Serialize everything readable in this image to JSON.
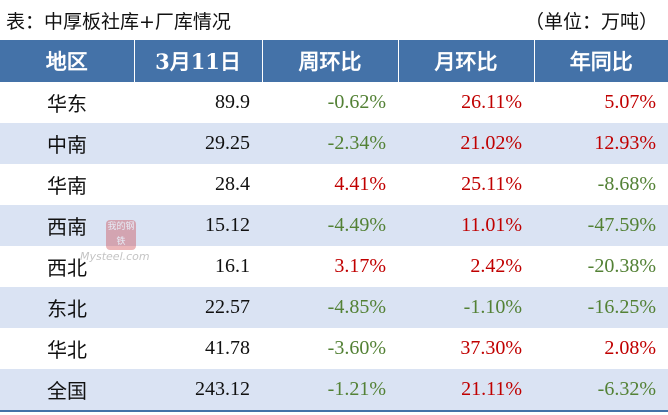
{
  "caption": {
    "title": "表：中厚板社库+厂库情况",
    "unit": "（单位：万吨）"
  },
  "headers": [
    "地区",
    "3月11日",
    "周环比",
    "月环比",
    "年同比"
  ],
  "rows": [
    {
      "region": "华东",
      "value": "89.9",
      "wow": "-0.62%",
      "mom": "26.11%",
      "yoy": "5.07%"
    },
    {
      "region": "中南",
      "value": "29.25",
      "wow": "-2.34%",
      "mom": "21.02%",
      "yoy": "12.93%"
    },
    {
      "region": "华南",
      "value": "28.4",
      "wow": "4.41%",
      "mom": "25.11%",
      "yoy": "-8.68%"
    },
    {
      "region": "西南",
      "value": "15.12",
      "wow": "-4.49%",
      "mom": "11.01%",
      "yoy": "-47.59%"
    },
    {
      "region": "西北",
      "value": "16.1",
      "wow": "3.17%",
      "mom": "2.42%",
      "yoy": "-20.38%"
    },
    {
      "region": "东北",
      "value": "22.57",
      "wow": "-4.85%",
      "mom": "-1.10%",
      "yoy": "-16.25%"
    },
    {
      "region": "华北",
      "value": "41.78",
      "wow": "-3.60%",
      "mom": "37.30%",
      "yoy": "2.08%"
    },
    {
      "region": "全国",
      "value": "243.12",
      "wow": "-1.21%",
      "mom": "21.11%",
      "yoy": "-6.32%"
    }
  ],
  "colors": {
    "header_bg": "#4472a8",
    "stripe": "#dae3f3",
    "positive": "#c00000",
    "negative": "#538135"
  },
  "watermark": {
    "logo_text": "我的钢铁",
    "text": "Mysteel.com"
  }
}
